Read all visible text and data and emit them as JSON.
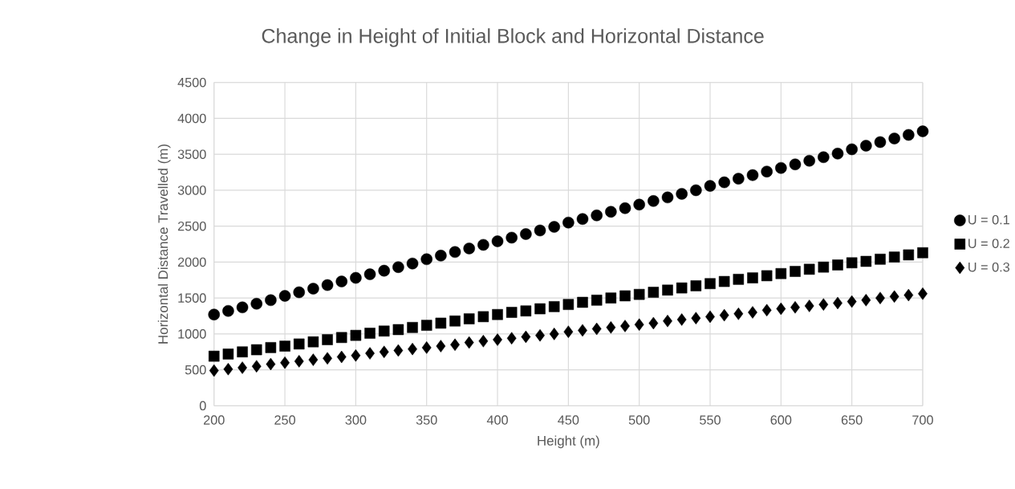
{
  "chart_data": {
    "type": "scatter",
    "title": "Change in Height of Initial Block and Horizontal Distance",
    "xlabel": "Height (m)",
    "ylabel": "Horizontal Distance Travelled  (m)",
    "x": [
      200,
      210,
      220,
      230,
      240,
      250,
      260,
      270,
      280,
      290,
      300,
      310,
      320,
      330,
      340,
      350,
      360,
      370,
      380,
      390,
      400,
      410,
      420,
      430,
      440,
      450,
      460,
      470,
      480,
      490,
      500,
      510,
      520,
      530,
      540,
      550,
      560,
      570,
      580,
      590,
      600,
      610,
      620,
      630,
      640,
      650,
      660,
      670,
      680,
      690,
      700
    ],
    "series": [
      {
        "name": "U = 0.1",
        "color": "#000000",
        "marker": "circle",
        "values": [
          1270,
          1320,
          1370,
          1420,
          1470,
          1530,
          1580,
          1630,
          1680,
          1730,
          1780,
          1830,
          1880,
          1930,
          1980,
          2040,
          2090,
          2140,
          2190,
          2240,
          2290,
          2340,
          2390,
          2440,
          2490,
          2550,
          2600,
          2650,
          2700,
          2750,
          2800,
          2850,
          2900,
          2950,
          3000,
          3060,
          3110,
          3160,
          3210,
          3260,
          3310,
          3360,
          3410,
          3460,
          3510,
          3570,
          3620,
          3670,
          3720,
          3770,
          3820
        ]
      },
      {
        "name": "U = 0.2",
        "color": "#000000",
        "marker": "square",
        "values": [
          690,
          720,
          750,
          780,
          810,
          830,
          860,
          890,
          920,
          950,
          980,
          1010,
          1040,
          1060,
          1090,
          1120,
          1150,
          1180,
          1210,
          1240,
          1270,
          1300,
          1320,
          1350,
          1380,
          1410,
          1440,
          1470,
          1500,
          1530,
          1550,
          1580,
          1610,
          1640,
          1670,
          1700,
          1730,
          1760,
          1780,
          1810,
          1840,
          1870,
          1900,
          1930,
          1960,
          1990,
          2010,
          2040,
          2070,
          2100,
          2130
        ]
      },
      {
        "name": "U = 0.3",
        "color": "#000000",
        "marker": "diamond",
        "values": [
          490,
          510,
          530,
          550,
          580,
          600,
          620,
          640,
          660,
          680,
          700,
          730,
          750,
          770,
          790,
          810,
          830,
          850,
          880,
          900,
          920,
          940,
          960,
          980,
          1000,
          1030,
          1050,
          1070,
          1090,
          1110,
          1130,
          1150,
          1180,
          1200,
          1220,
          1240,
          1260,
          1280,
          1300,
          1330,
          1350,
          1370,
          1390,
          1410,
          1430,
          1450,
          1470,
          1500,
          1520,
          1540,
          1560
        ]
      }
    ],
    "xlim": [
      200,
      700
    ],
    "ylim": [
      0,
      4500
    ],
    "xticks": [
      200,
      250,
      300,
      350,
      400,
      450,
      500,
      550,
      600,
      650,
      700
    ],
    "yticks": [
      0,
      500,
      1000,
      1500,
      2000,
      2500,
      3000,
      3500,
      4000,
      4500
    ],
    "grid": true,
    "legend": "right"
  }
}
